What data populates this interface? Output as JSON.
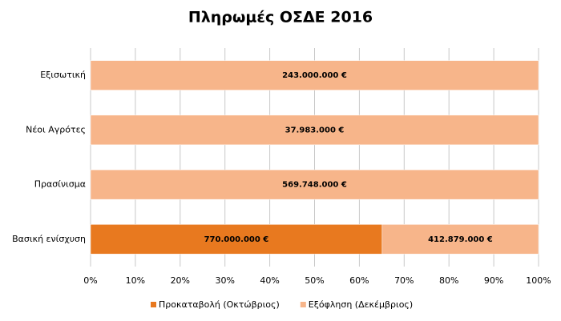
{
  "chart_data": {
    "type": "bar",
    "orientation": "horizontal",
    "stacking": "percent",
    "title": "Πληρωμές ΟΣΔΕ 2016",
    "categories": [
      "Εξισωτική",
      "Νέοι Αγρότες",
      "Πρασίνισμα",
      "Βασική ενίσχυση"
    ],
    "series": [
      {
        "name": "Προκαταβολή (Οκτώβριος)",
        "color": "#e8791f",
        "values": [
          null,
          null,
          null,
          770000000
        ],
        "value_labels": [
          null,
          null,
          null,
          "770.000.000 €"
        ]
      },
      {
        "name": "Εξόφληση (Δεκέμβριος)",
        "color": "#f7b58a",
        "values": [
          243000000,
          37983000,
          569748000,
          412879000
        ],
        "value_labels": [
          "243.000.000 €",
          "37.983.000 €",
          "569.748.000 €",
          "412.879.000 €"
        ]
      }
    ],
    "xlim": [
      0,
      100
    ],
    "xticks": [
      {
        "value": 0,
        "label": "0%"
      },
      {
        "value": 10,
        "label": "10%"
      },
      {
        "value": 20,
        "label": "20%"
      },
      {
        "value": 30,
        "label": "30%"
      },
      {
        "value": 40,
        "label": "40%"
      },
      {
        "value": 50,
        "label": "50%"
      },
      {
        "value": 60,
        "label": "60%"
      },
      {
        "value": 70,
        "label": "70%"
      },
      {
        "value": 80,
        "label": "80%"
      },
      {
        "value": 90,
        "label": "90%"
      },
      {
        "value": 100,
        "label": "100%"
      }
    ],
    "grid": true,
    "legend": "bottom"
  }
}
